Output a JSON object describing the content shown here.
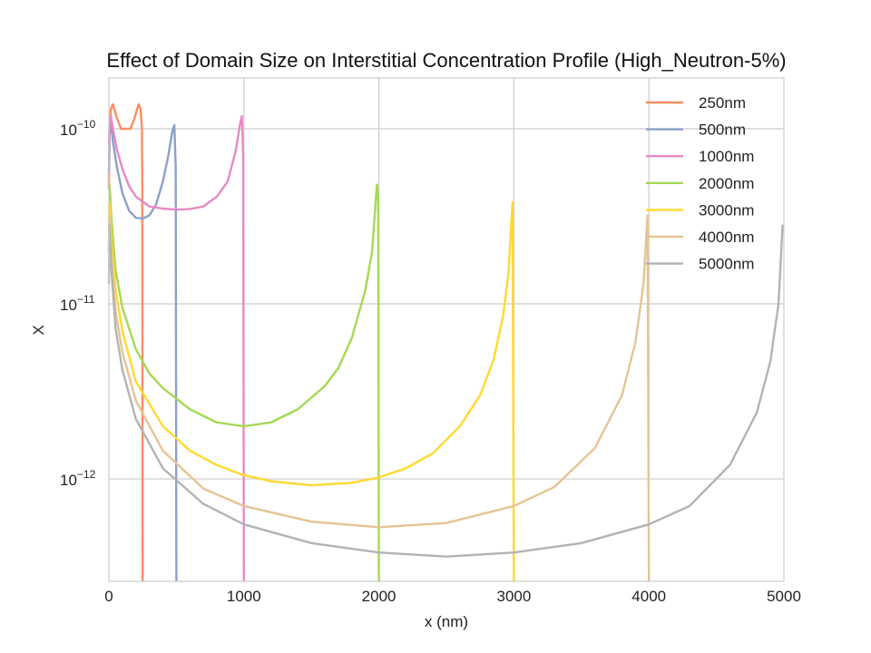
{
  "chart_data": {
    "type": "line",
    "title": "Effect of Domain Size on Interstitial Concentration Profile (High_Neutron-5%)",
    "xlabel": "x (nm)",
    "ylabel": "X",
    "xlim": [
      0,
      5000
    ],
    "ylim": [
      2.6e-13,
      1.95e-10
    ],
    "yscale": "log",
    "grid": true,
    "legend_position": "top-right",
    "x_ticks": [
      0,
      1000,
      2000,
      3000,
      4000,
      5000
    ],
    "x_tick_labels": [
      "0",
      "1000",
      "2000",
      "3000",
      "4000",
      "5000"
    ],
    "y_ticks": [
      1e-12,
      1e-11,
      1e-10
    ],
    "y_tick_labels": [
      {
        "base": "10",
        "exp": "−12"
      },
      {
        "base": "10",
        "exp": "−11"
      },
      {
        "base": "10",
        "exp": "−10"
      }
    ],
    "series": [
      {
        "name": "250nm",
        "color": "#FC8D62",
        "L": 250,
        "x": [
          0,
          5,
          15,
          30,
          60,
          90,
          125,
          160,
          190,
          220,
          235,
          245,
          248,
          250
        ],
        "y": [
          4.5e-11,
          1e-10,
          1.3e-10,
          1.38e-10,
          1.15e-10,
          1e-10,
          1e-10,
          1e-10,
          1.15e-10,
          1.38e-10,
          1.3e-10,
          1e-10,
          4.5e-11,
          2.6e-13
        ]
      },
      {
        "name": "500nm",
        "color": "#8DA0CB",
        "L": 500,
        "x": [
          0,
          5,
          15,
          30,
          60,
          100,
          150,
          200,
          250,
          300,
          350,
          400,
          440,
          470,
          485,
          495,
          500
        ],
        "y": [
          5.5e-11,
          9.5e-11,
          1.08e-10,
          8.5e-11,
          6e-11,
          4.3e-11,
          3.4e-11,
          3.1e-11,
          3.07e-11,
          3.2e-11,
          3.7e-11,
          5e-11,
          7e-11,
          9.7e-11,
          1.05e-10,
          6e-11,
          2.6e-13
        ]
      },
      {
        "name": "1000nm",
        "color": "#E78AC3",
        "L": 1000,
        "x": [
          0,
          5,
          15,
          30,
          60,
          100,
          150,
          200,
          300,
          400,
          500,
          600,
          700,
          800,
          880,
          940,
          970,
          985,
          995,
          1000
        ],
        "y": [
          8e-11,
          1.12e-10,
          1.18e-10,
          1e-10,
          7.6e-11,
          5.9e-11,
          4.7e-11,
          4.1e-11,
          3.6e-11,
          3.5e-11,
          3.45e-11,
          3.48e-11,
          3.6e-11,
          4.1e-11,
          5e-11,
          7.5e-11,
          1.05e-10,
          1.18e-10,
          7e-11,
          2.6e-13
        ]
      },
      {
        "name": "2000nm",
        "color": "#A6D854",
        "L": 2000,
        "x": [
          0,
          5,
          20,
          50,
          100,
          200,
          300,
          400,
          600,
          800,
          1000,
          1200,
          1400,
          1600,
          1700,
          1800,
          1900,
          1950,
          1985,
          1995,
          2000
        ],
        "y": [
          2e-11,
          4.8e-11,
          3e-11,
          1.55e-11,
          9.5e-12,
          5.5e-12,
          4e-12,
          3.3e-12,
          2.5e-12,
          2.1e-12,
          2e-12,
          2.1e-12,
          2.5e-12,
          3.4e-12,
          4.3e-12,
          6.4e-12,
          1.2e-11,
          2e-11,
          4.8e-11,
          4e-11,
          2.6e-13
        ]
      },
      {
        "name": "3000nm",
        "color": "#FFD92F",
        "L": 3000,
        "x": [
          0,
          5,
          20,
          50,
          100,
          200,
          400,
          600,
          800,
          1000,
          1200,
          1500,
          1800,
          2000,
          2200,
          2400,
          2600,
          2750,
          2850,
          2920,
          2960,
          2990,
          3000
        ],
        "y": [
          3e-11,
          3.8e-11,
          2.2e-11,
          1.2e-11,
          7e-12,
          3.6e-12,
          2e-12,
          1.45e-12,
          1.2e-12,
          1.05e-12,
          9.7e-13,
          9.2e-13,
          9.5e-13,
          1.02e-12,
          1.15e-12,
          1.4e-12,
          2e-12,
          3e-12,
          4.8e-12,
          8.5e-12,
          1.5e-11,
          3.8e-11,
          2.6e-13
        ]
      },
      {
        "name": "4000nm",
        "color": "#E5C494",
        "L": 4000,
        "x": [
          0,
          5,
          20,
          50,
          100,
          200,
          400,
          700,
          1000,
          1500,
          2000,
          2500,
          3000,
          3300,
          3600,
          3800,
          3900,
          3960,
          3990,
          4000
        ],
        "y": [
          2e-11,
          3.2e-11,
          1.8e-11,
          9e-12,
          5.3e-12,
          2.8e-12,
          1.45e-12,
          8.8e-13,
          7e-13,
          5.7e-13,
          5.3e-13,
          5.6e-13,
          7e-13,
          9e-13,
          1.5e-12,
          3e-12,
          6e-12,
          1.3e-11,
          3.2e-11,
          2.6e-13
        ]
      },
      {
        "name": "5000nm",
        "color": "#B3B3B3",
        "L": 5000,
        "x": [
          0,
          5,
          20,
          50,
          100,
          200,
          400,
          700,
          1000,
          1500,
          2000,
          2500,
          3000,
          3500,
          4000,
          4300,
          4600,
          4800,
          4900,
          4960,
          4990,
          5000
        ],
        "y": [
          1.3e-11,
          2.8e-11,
          1.5e-11,
          7.2e-12,
          4.2e-12,
          2.2e-12,
          1.15e-12,
          7.2e-13,
          5.5e-13,
          4.3e-13,
          3.8e-13,
          3.6e-13,
          3.8e-13,
          4.3e-13,
          5.5e-13,
          7e-13,
          1.2e-12,
          2.4e-12,
          4.7e-12,
          1e-11,
          2.8e-11,
          2.8e-11
        ]
      }
    ]
  }
}
